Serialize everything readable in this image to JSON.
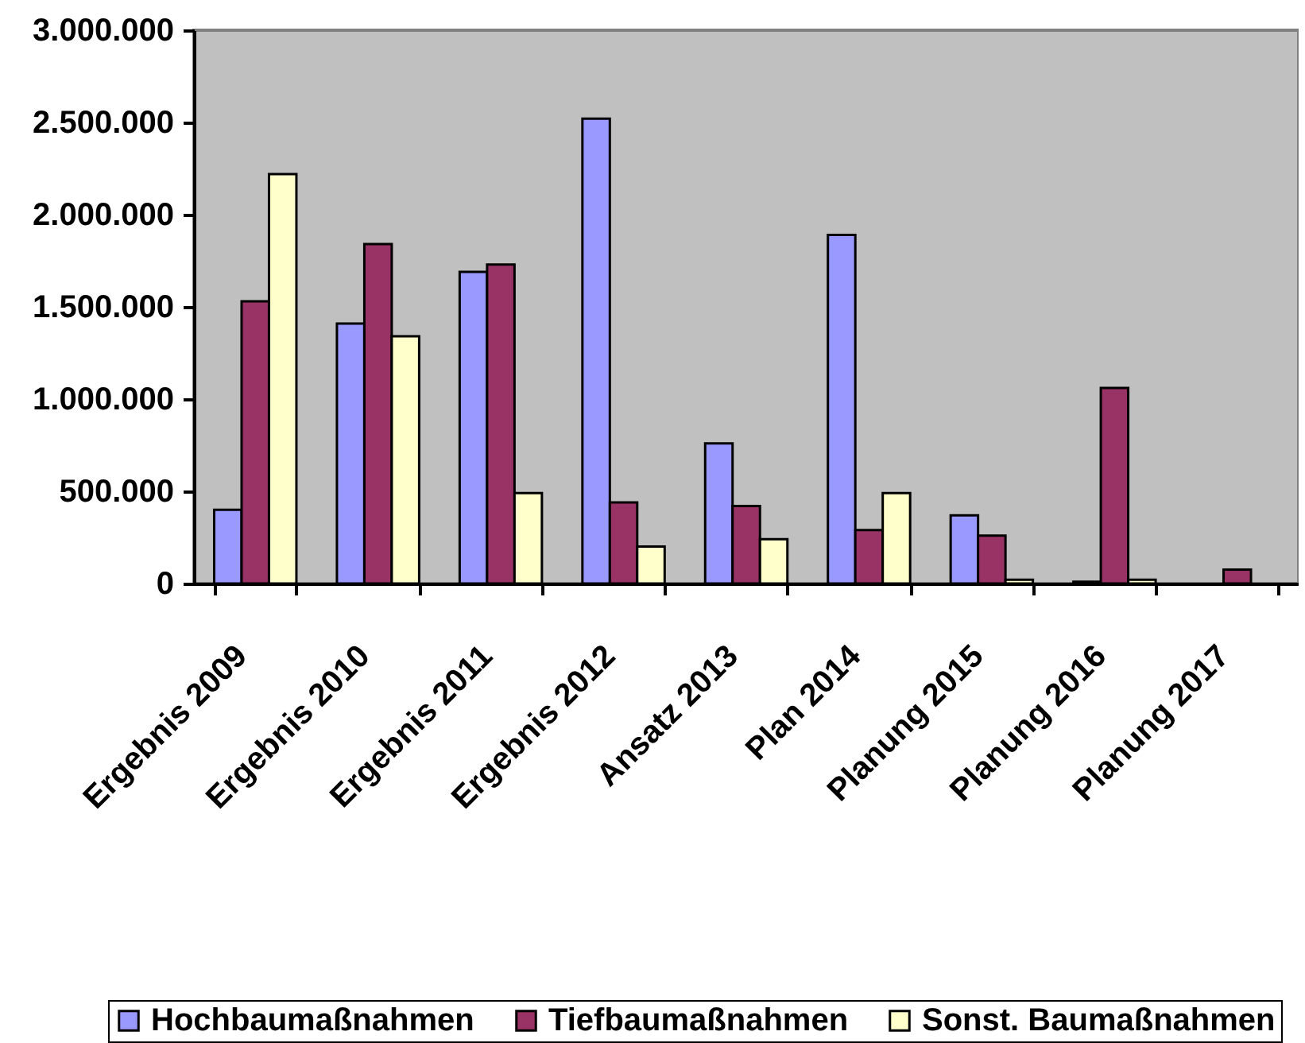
{
  "chart_data": {
    "type": "bar",
    "categories": [
      "Ergebnis  2009",
      "Ergebnis  2010",
      "Ergebnis  2011",
      "Ergebnis  2012",
      "Ansatz 2013",
      "Plan  2014",
      "Planung  2015",
      "Planung  2016",
      "Planung  2017"
    ],
    "series": [
      {
        "name": "Hochbaumaßnahmen",
        "color": "#9999ff",
        "values": [
          400000,
          1410000,
          1690000,
          2520000,
          760000,
          1890000,
          370000,
          10000,
          null
        ]
      },
      {
        "name": "Tiefbaumaßnahmen",
        "color": "#993366",
        "values": [
          1530000,
          1840000,
          1730000,
          440000,
          420000,
          290000,
          260000,
          1060000,
          75000
        ]
      },
      {
        "name": "Sonst. Baumaßnahmen",
        "color": "#ffffcc",
        "values": [
          2220000,
          1340000,
          490000,
          200000,
          240000,
          490000,
          20000,
          20000,
          null
        ]
      }
    ],
    "ylim": [
      0,
      3000000
    ],
    "yticks": [
      0,
      {
        "value": 500000,
        "label": "500.000"
      },
      {
        "value": 1000000,
        "label": "1.000.000"
      },
      {
        "value": 1500000,
        "label": "1.500.000"
      },
      {
        "value": 2000000,
        "label": "2.000.000"
      },
      {
        "value": 2500000,
        "label": "2.500.000"
      },
      {
        "value": 3000000,
        "label": "3.000.000"
      }
    ],
    "legend": "bottom"
  }
}
